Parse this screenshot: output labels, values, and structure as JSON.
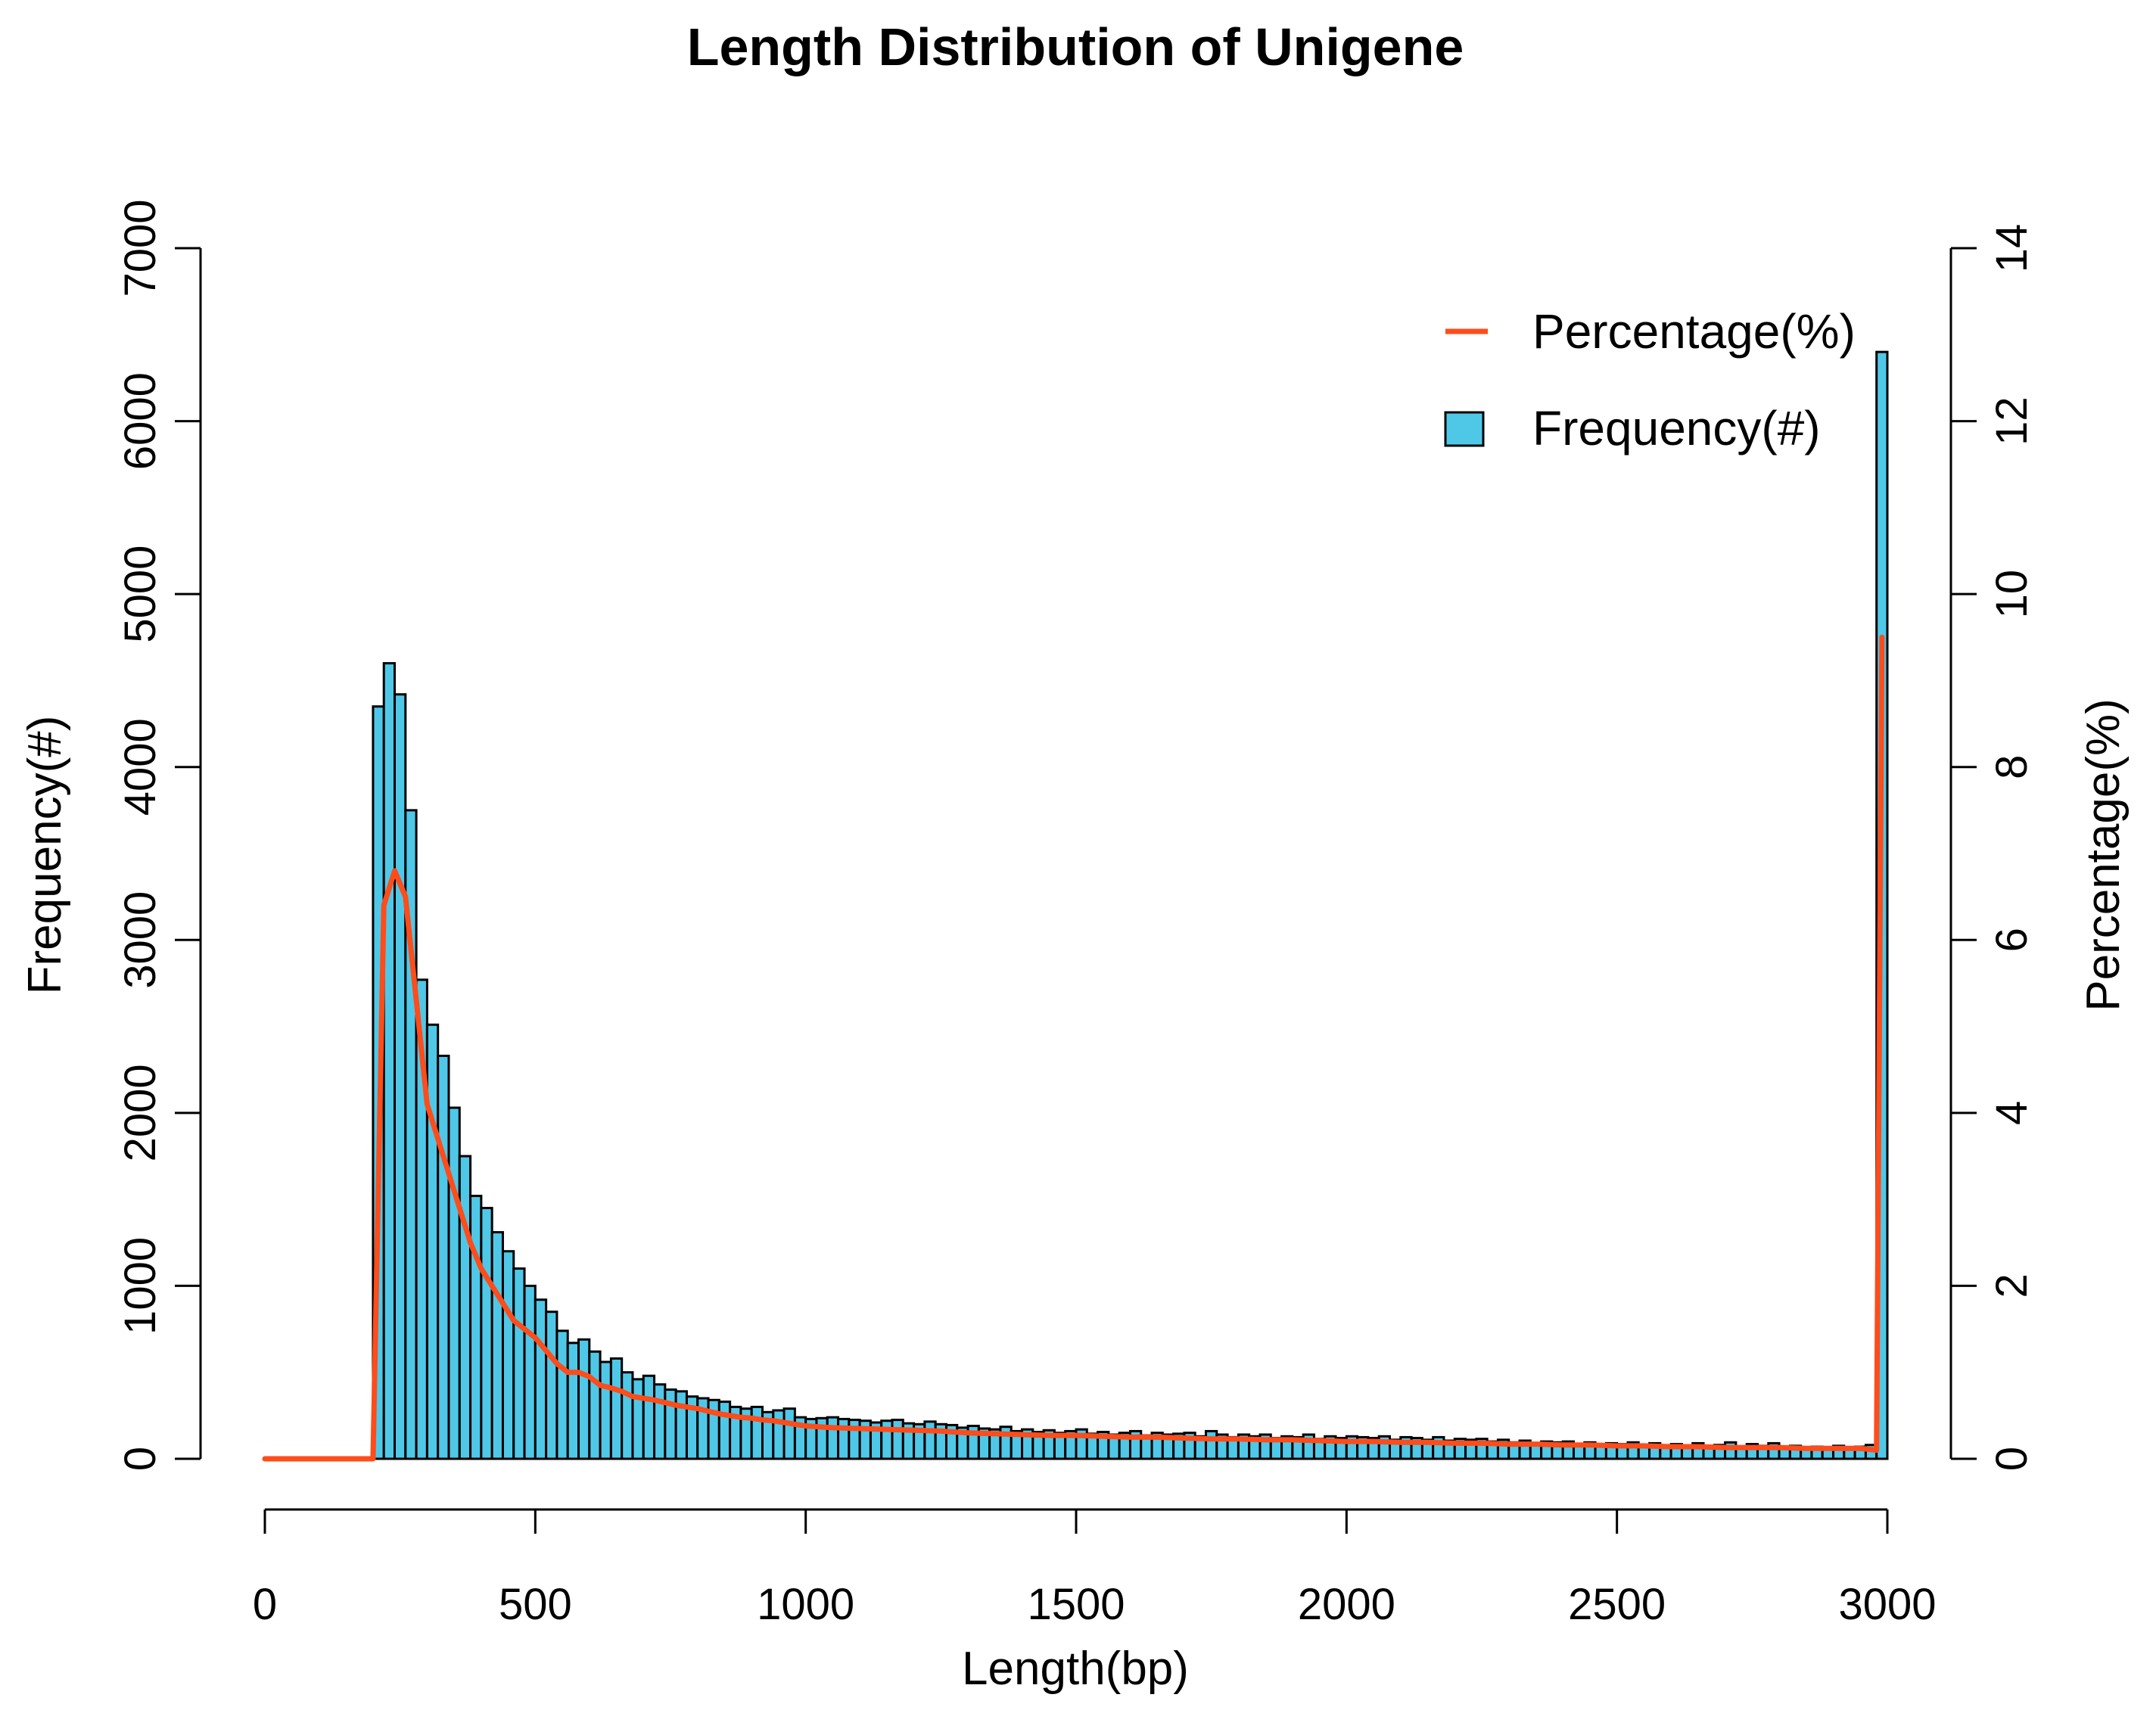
{
  "chart_data": {
    "type": "bar",
    "title": "Length Distribution of Unigene",
    "xlabel": "Length(bp)",
    "ylabel_left": "Frequency(#)",
    "ylabel_right": "Percentage(%)",
    "xlim": [
      0,
      3000
    ],
    "ylim_left": [
      0,
      7000
    ],
    "ylim_right": [
      0,
      14
    ],
    "x_ticks": [
      "0",
      "500",
      "1000",
      "1500",
      "2000",
      "2500",
      "3000"
    ],
    "y_left_ticks": [
      "0",
      "1000",
      "2000",
      "3000",
      "4000",
      "5000",
      "6000",
      "7000"
    ],
    "y_right_ticks": [
      "0",
      "2",
      "4",
      "6",
      "8",
      "10",
      "12",
      "14"
    ],
    "bin_width": 20,
    "grid": false,
    "legend_position": "top-right",
    "legend": [
      {
        "label": "Percentage(%)",
        "kind": "line",
        "color": "#ff4c1a"
      },
      {
        "label": "Frequency(#)",
        "kind": "bar",
        "color": "#4fc8e8"
      }
    ],
    "bars": {
      "name": "Frequency(#)",
      "color": "#4fc8e8",
      "x_start": [
        200,
        220,
        240,
        260,
        280,
        300,
        320,
        340,
        360,
        380,
        400,
        420,
        440,
        460,
        480,
        500,
        520,
        540,
        560,
        580,
        600,
        620,
        640,
        660,
        680,
        700,
        720,
        740,
        760,
        780,
        800,
        820,
        840,
        860,
        880,
        900,
        920,
        940,
        960,
        980,
        1000,
        1020,
        1040,
        1060,
        1080,
        1100,
        1120,
        1140,
        1160,
        1180,
        1200,
        1220,
        1240,
        1260,
        1280,
        1300,
        1320,
        1340,
        1360,
        1380,
        1400,
        1420,
        1440,
        1460,
        1480,
        1500,
        1520,
        1540,
        1560,
        1580,
        1600,
        1620,
        1640,
        1660,
        1680,
        1700,
        1720,
        1740,
        1760,
        1780,
        1800,
        1820,
        1840,
        1860,
        1880,
        1900,
        1920,
        1940,
        1960,
        1980,
        2000,
        2020,
        2040,
        2060,
        2080,
        2100,
        2120,
        2140,
        2160,
        2180,
        2200,
        2220,
        2240,
        2260,
        2280,
        2300,
        2320,
        2340,
        2360,
        2380,
        2400,
        2420,
        2440,
        2460,
        2480,
        2500,
        2520,
        2540,
        2560,
        2580,
        2600,
        2620,
        2640,
        2660,
        2680,
        2700,
        2720,
        2740,
        2760,
        2780,
        2800,
        2820,
        2840,
        2860,
        2880,
        2900,
        2920,
        2940,
        2960,
        2980
      ],
      "values": [
        4350,
        4600,
        4420,
        3750,
        2770,
        2510,
        2330,
        2030,
        1750,
        1520,
        1450,
        1310,
        1200,
        1100,
        1000,
        920,
        850,
        740,
        670,
        690,
        620,
        560,
        580,
        500,
        460,
        480,
        430,
        400,
        390,
        360,
        350,
        340,
        330,
        300,
        290,
        300,
        270,
        280,
        290,
        240,
        230,
        235,
        240,
        230,
        225,
        220,
        210,
        220,
        225,
        205,
        200,
        215,
        200,
        195,
        180,
        190,
        175,
        170,
        185,
        160,
        170,
        155,
        165,
        150,
        160,
        170,
        145,
        155,
        140,
        150,
        160,
        135,
        150,
        140,
        145,
        150,
        130,
        160,
        140,
        125,
        140,
        130,
        140,
        120,
        130,
        125,
        140,
        115,
        130,
        120,
        130,
        125,
        120,
        130,
        110,
        125,
        120,
        110,
        125,
        105,
        115,
        110,
        115,
        100,
        110,
        95,
        105,
        90,
        100,
        95,
        100,
        85,
        95,
        80,
        90,
        85,
        95,
        80,
        90,
        75,
        85,
        70,
        90,
        75,
        80,
        95,
        70,
        85,
        75,
        90,
        70,
        75,
        65,
        70,
        60,
        75,
        65,
        70,
        80,
        6400
      ]
    },
    "line": {
      "name": "Percentage(%)",
      "color": "#ff4c1a",
      "x": [
        0,
        20,
        40,
        60,
        80,
        100,
        120,
        140,
        160,
        180,
        200,
        220,
        240,
        260,
        280,
        300,
        320,
        340,
        360,
        380,
        400,
        420,
        440,
        460,
        480,
        500,
        520,
        540,
        560,
        580,
        600,
        620,
        640,
        660,
        680,
        700,
        720,
        740,
        760,
        780,
        800,
        820,
        840,
        860,
        880,
        900,
        920,
        940,
        960,
        980,
        1000,
        1050,
        1100,
        1150,
        1200,
        1250,
        1300,
        1350,
        1400,
        1450,
        1500,
        1550,
        1600,
        1650,
        1700,
        1750,
        1800,
        1850,
        1900,
        1950,
        2000,
        2050,
        2100,
        2150,
        2200,
        2250,
        2300,
        2350,
        2400,
        2450,
        2500,
        2550,
        2600,
        2650,
        2700,
        2750,
        2800,
        2850,
        2900,
        2950,
        2980,
        2990
      ],
      "values": [
        0,
        0,
        0,
        0,
        0,
        0,
        0,
        0,
        0,
        0,
        0,
        6.4,
        6.8,
        6.5,
        5.3,
        4.1,
        3.7,
        3.3,
        2.9,
        2.5,
        2.2,
        2.0,
        1.8,
        1.6,
        1.5,
        1.4,
        1.25,
        1.1,
        1.0,
        1.0,
        0.95,
        0.85,
        0.82,
        0.78,
        0.72,
        0.7,
        0.68,
        0.65,
        0.62,
        0.6,
        0.58,
        0.55,
        0.52,
        0.5,
        0.48,
        0.47,
        0.45,
        0.44,
        0.42,
        0.4,
        0.38,
        0.36,
        0.35,
        0.34,
        0.33,
        0.32,
        0.3,
        0.29,
        0.28,
        0.27,
        0.27,
        0.26,
        0.25,
        0.25,
        0.24,
        0.23,
        0.23,
        0.22,
        0.22,
        0.21,
        0.2,
        0.2,
        0.19,
        0.19,
        0.18,
        0.18,
        0.17,
        0.17,
        0.16,
        0.16,
        0.15,
        0.15,
        0.14,
        0.14,
        0.13,
        0.13,
        0.13,
        0.12,
        0.12,
        0.12,
        0.1,
        9.5
      ]
    }
  }
}
